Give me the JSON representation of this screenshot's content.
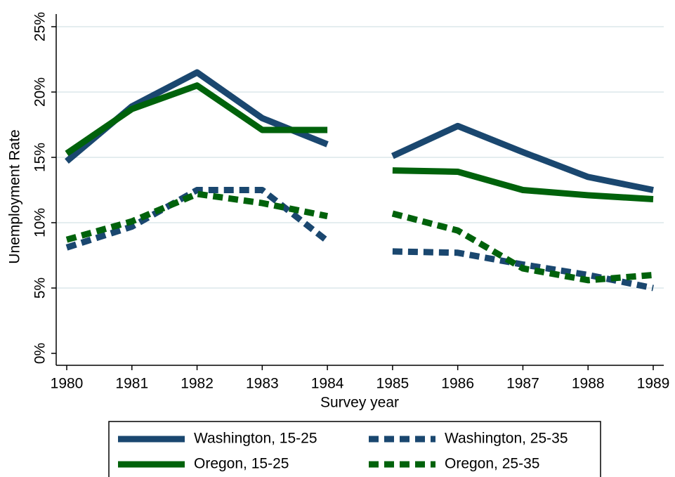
{
  "chart_data": {
    "type": "line",
    "xlabel": "Survey year",
    "ylabel": "Unemployment Rate",
    "x": [
      1980,
      1981,
      1982,
      1983,
      1984,
      null,
      1985,
      1986,
      1987,
      1988,
      1989
    ],
    "series": [
      {
        "name": "Washington, 15-25",
        "color": "#1a476f",
        "style": "solid",
        "values": [
          14.7,
          18.9,
          21.5,
          18.0,
          16.0,
          null,
          15.1,
          17.4,
          15.4,
          13.5,
          12.5
        ]
      },
      {
        "name": "Washington, 25-35",
        "color": "#1a476f",
        "style": "dashed",
        "values": [
          8.1,
          9.7,
          12.5,
          12.5,
          8.6,
          null,
          7.8,
          7.7,
          6.8,
          6.0,
          5.0
        ]
      },
      {
        "name": "Oregon, 15-25",
        "color": "#00620b",
        "style": "solid",
        "values": [
          15.3,
          18.7,
          20.5,
          17.1,
          17.1,
          null,
          14.0,
          13.9,
          12.5,
          12.1,
          11.8
        ]
      },
      {
        "name": "Oregon, 25-35",
        "color": "#00620b",
        "style": "dashed",
        "values": [
          8.7,
          10.1,
          12.2,
          11.5,
          10.5,
          null,
          10.7,
          9.4,
          6.5,
          5.6,
          6.0
        ]
      }
    ],
    "xlim": [
      1980,
      1989
    ],
    "xticks": [
      1980,
      1981,
      1982,
      1983,
      1984,
      1985,
      1986,
      1987,
      1988,
      1989
    ],
    "ylim": [
      0,
      25
    ],
    "yticks": [
      {
        "value": 0,
        "label": "0%"
      },
      {
        "value": 5,
        "label": "5%"
      },
      {
        "value": 10,
        "label": "10%"
      },
      {
        "value": 15,
        "label": "15%"
      },
      {
        "value": 20,
        "label": "20%"
      },
      {
        "value": 25,
        "label": "25%"
      }
    ],
    "grid": true,
    "legend": "bottom"
  }
}
